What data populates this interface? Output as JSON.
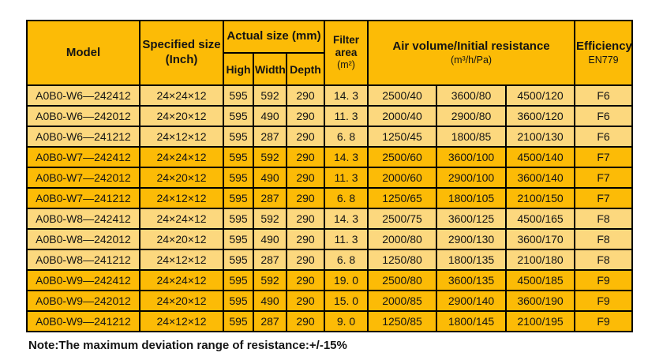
{
  "colors": {
    "header_bg": "#FCBB06",
    "row_light_bg": "#FCD87E",
    "row_dark_bg": "#FCBB06",
    "border": "#000000",
    "text": "#141414",
    "page_bg": "#FFFFFF"
  },
  "table": {
    "header": {
      "model": "Model",
      "specified_size_line1": "Specified size",
      "specified_size_line2": "(Inch)",
      "actual_size": "Actual size (mm)",
      "sub_high": "High",
      "sub_width": "Width",
      "sub_depth": "Depth",
      "filter_area_line1": "Filter",
      "filter_area_line2": "area",
      "filter_area_line3": "(m²)",
      "air_volume_line1": "Air volume/Initial resistance",
      "air_volume_line2": "(m³/h/Pa)",
      "efficiency_line1": "Efficiency",
      "efficiency_line2": "EN779"
    },
    "rows": [
      {
        "model": "A0B0-W6—242412",
        "specified": "24×24×12",
        "high": "595",
        "width": "592",
        "depth": "290",
        "area": "14. 3",
        "air": [
          "2500/40",
          "3600/80",
          "4500/120"
        ],
        "efficiency": "F6",
        "shade": "light"
      },
      {
        "model": "A0B0-W6—242012",
        "specified": "24×20×12",
        "high": "595",
        "width": "490",
        "depth": "290",
        "area": "11. 3",
        "air": [
          "2000/40",
          "2900/80",
          "3600/120"
        ],
        "efficiency": "F6",
        "shade": "light"
      },
      {
        "model": "A0B0-W6—241212",
        "specified": "24×12×12",
        "high": "595",
        "width": "287",
        "depth": "290",
        "area": "6. 8",
        "air": [
          "1250/45",
          "1800/85",
          "2100/130"
        ],
        "efficiency": "F6",
        "shade": "light"
      },
      {
        "model": "A0B0-W7—242412",
        "specified": "24×24×12",
        "high": "595",
        "width": "592",
        "depth": "290",
        "area": "14. 3",
        "air": [
          "2500/60",
          "3600/100",
          "4500/140"
        ],
        "efficiency": "F7",
        "shade": "dark"
      },
      {
        "model": "A0B0-W7—242012",
        "specified": "24×20×12",
        "high": "595",
        "width": "490",
        "depth": "290",
        "area": "11. 3",
        "air": [
          "2000/60",
          "2900/100",
          "3600/140"
        ],
        "efficiency": "F7",
        "shade": "dark"
      },
      {
        "model": "A0B0-W7—241212",
        "specified": "24×12×12",
        "high": "595",
        "width": "287",
        "depth": "290",
        "area": "6. 8",
        "air": [
          "1250/65",
          "1800/105",
          "2100/150"
        ],
        "efficiency": "F7",
        "shade": "dark"
      },
      {
        "model": "A0B0-W8—242412",
        "specified": "24×24×12",
        "high": "595",
        "width": "592",
        "depth": "290",
        "area": "14. 3",
        "air": [
          "2500/75",
          "3600/125",
          "4500/165"
        ],
        "efficiency": "F8",
        "shade": "light"
      },
      {
        "model": "A0B0-W8—242012",
        "specified": "24×20×12",
        "high": "595",
        "width": "490",
        "depth": "290",
        "area": "11. 3",
        "air": [
          "2000/80",
          "2900/130",
          "3600/170"
        ],
        "efficiency": "F8",
        "shade": "light"
      },
      {
        "model": "A0B0-W8—241212",
        "specified": "24×12×12",
        "high": "595",
        "width": "287",
        "depth": "290",
        "area": "6. 8",
        "air": [
          "1250/80",
          "1800/135",
          "2100/180"
        ],
        "efficiency": "F8",
        "shade": "light"
      },
      {
        "model": "A0B0-W9—242412",
        "specified": "24×24×12",
        "high": "595",
        "width": "592",
        "depth": "290",
        "area": "19. 0",
        "air": [
          "2500/80",
          "3600/135",
          "4500/185"
        ],
        "efficiency": "F9",
        "shade": "dark"
      },
      {
        "model": "A0B0-W9—242012",
        "specified": "24×20×12",
        "high": "595",
        "width": "490",
        "depth": "290",
        "area": "15. 0",
        "air": [
          "2000/85",
          "2900/140",
          "3600/190"
        ],
        "efficiency": "F9",
        "shade": "dark"
      },
      {
        "model": "A0B0-W9—241212",
        "specified": "24×12×12",
        "high": "595",
        "width": "287",
        "depth": "290",
        "area": "9. 0",
        "air": [
          "1250/85",
          "1800/145",
          "2100/195"
        ],
        "efficiency": "F9",
        "shade": "dark"
      }
    ],
    "cell_names": [
      "model-cell",
      "specified-size-cell",
      "high-cell",
      "width-cell",
      "depth-cell",
      "filter-area-cell",
      "air-volume-cell-1",
      "air-volume-cell-2",
      "air-volume-cell-3",
      "efficiency-cell"
    ]
  },
  "note": "Note:The maximum deviation range of resistance:+/-15%"
}
